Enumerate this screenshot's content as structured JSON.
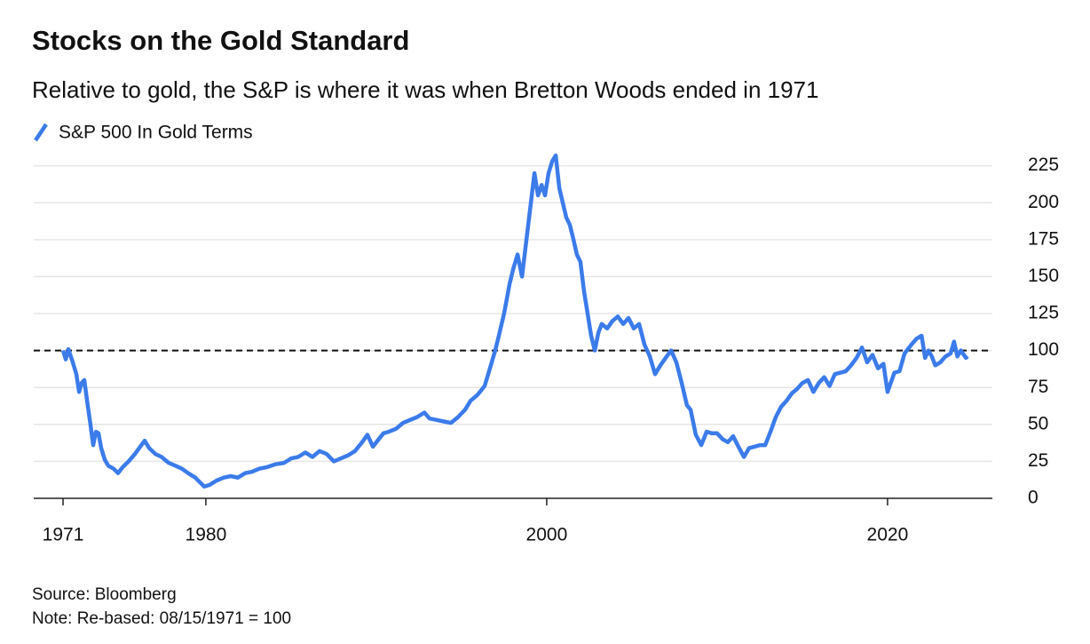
{
  "chart_data": {
    "type": "line",
    "title": "Stocks on the Gold Standard",
    "subtitle": "Relative to gold, the S&P is where it was when Bretton Woods ended in 1971",
    "source": "Source: Bloomberg",
    "note": "Note: Re-based: 08/15/1971 = 100",
    "x": [
      1971.62,
      1971.78,
      1971.93,
      1972.19,
      1972.4,
      1972.56,
      1972.71,
      1972.87,
      1973.03,
      1973.23,
      1973.39,
      1973.55,
      1973.7,
      1973.86,
      1974.07,
      1974.28,
      1974.59,
      1974.85,
      1975.11,
      1975.47,
      1975.84,
      1976.15,
      1976.41,
      1976.67,
      1977.04,
      1977.4,
      1977.82,
      1978.23,
      1978.6,
      1978.96,
      1979.38,
      1979.64,
      1979.9,
      1980.21,
      1980.63,
      1981.05,
      1981.46,
      1981.88,
      1982.3,
      1982.71,
      1983.13,
      1983.55,
      1984.07,
      1984.59,
      1985.0,
      1985.42,
      1985.84,
      1986.26,
      1986.67,
      1987.09,
      1987.51,
      1987.92,
      1988.34,
      1988.75,
      1989.17,
      1989.48,
      1989.8,
      1990.21,
      1990.42,
      1990.73,
      1991.15,
      1991.57,
      1991.98,
      1992.4,
      1992.82,
      1993.13,
      1993.55,
      1993.96,
      1994.38,
      1994.8,
      1995.21,
      1995.53,
      1995.94,
      1996.36,
      1996.67,
      1996.98,
      1997.19,
      1997.5,
      1997.82,
      1998.03,
      1998.29,
      1998.55,
      1998.81,
      1999.07,
      1999.28,
      1999.49,
      1999.7,
      1999.9,
      2000.11,
      2000.32,
      2000.53,
      2000.74,
      2000.94,
      2001.15,
      2001.36,
      2001.57,
      2001.77,
      2001.98,
      2002.19,
      2002.4,
      2002.61,
      2002.82,
      2003.03,
      2003.23,
      2003.55,
      2003.86,
      2004.17,
      2004.49,
      2004.8,
      2005.11,
      2005.42,
      2005.74,
      2006.05,
      2006.36,
      2006.67,
      2006.98,
      2007.3,
      2007.61,
      2007.92,
      2008.23,
      2008.44,
      2008.75,
      2009.07,
      2009.38,
      2009.69,
      2010.0,
      2010.32,
      2010.63,
      2010.94,
      2011.25,
      2011.57,
      2011.88,
      2012.2,
      2012.51,
      2012.82,
      2013.13,
      2013.44,
      2013.76,
      2014.07,
      2014.38,
      2014.69,
      2015.0,
      2015.33,
      2015.65,
      2015.96,
      2016.28,
      2016.6,
      2016.91,
      2017.24,
      2017.55,
      2017.86,
      2018.18,
      2018.5,
      2018.8,
      2019.12,
      2019.44,
      2019.76,
      2020.0,
      2020.4,
      2020.7,
      2021.0,
      2021.4,
      2021.7,
      2022.0,
      2022.2,
      2022.4,
      2022.6,
      2022.8,
      2023.1,
      2023.4,
      2023.7,
      2023.9,
      2024.1,
      2024.3,
      2024.6,
      2024.7
    ],
    "series": [
      {
        "name": "S&P 500 In Gold Terms",
        "color": "#3b7bea",
        "values": [
          100,
          94,
          101,
          92,
          84,
          72,
          78,
          80,
          66,
          50,
          36,
          45,
          44,
          34,
          26,
          22,
          20,
          17,
          21,
          25,
          30,
          35,
          39,
          34,
          30,
          28,
          24,
          22,
          20,
          17,
          14,
          11,
          8,
          9,
          12,
          14,
          15,
          14,
          17,
          18,
          20,
          21,
          23,
          24,
          27,
          28,
          31,
          28,
          32,
          30,
          25,
          27,
          29,
          32,
          38,
          43,
          35,
          41,
          44,
          45,
          47,
          51,
          53,
          55,
          58,
          54,
          53,
          52,
          51,
          55,
          60,
          66,
          70,
          76,
          88,
          100,
          110,
          125,
          145,
          155,
          165,
          150,
          175,
          200,
          220,
          205,
          212,
          205,
          220,
          228,
          232,
          210,
          200,
          190,
          185,
          175,
          165,
          160,
          140,
          125,
          110,
          100,
          112,
          118,
          115,
          120,
          123,
          118,
          122,
          115,
          118,
          104,
          96,
          84,
          90,
          95,
          100,
          92,
          78,
          63,
          60,
          43,
          36,
          45,
          44,
          44,
          40,
          38,
          42,
          35,
          28,
          34,
          35,
          36,
          36,
          45,
          55,
          62,
          66,
          71,
          74,
          78,
          80,
          72,
          78,
          82,
          76,
          84,
          85,
          86,
          90,
          95,
          102,
          92,
          97,
          88,
          91,
          72,
          85,
          86,
          98,
          104,
          108,
          110,
          95,
          100,
          96,
          90,
          92,
          96,
          98,
          106,
          96,
          100,
          95,
          96
        ]
      }
    ],
    "xlim": [
      1969.9,
      2026.15
    ],
    "xticks": [
      {
        "value": 1971.62,
        "label": "1971"
      },
      1980,
      2000,
      2020
    ],
    "ylim": [
      0,
      235
    ],
    "yticks": [
      0,
      25,
      50,
      75,
      100,
      125,
      150,
      175,
      200,
      225
    ],
    "reference_line": 100,
    "grid": true
  }
}
